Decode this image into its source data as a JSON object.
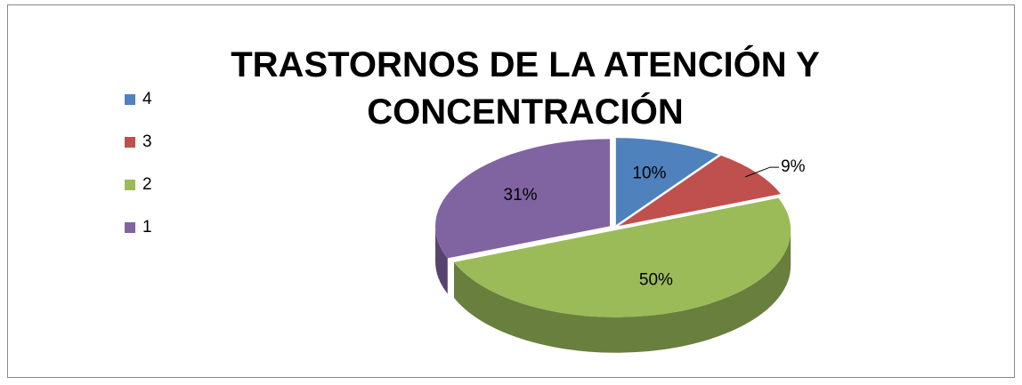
{
  "chart_data": {
    "type": "pie",
    "title": "TRASTORNOS DE LA ATENCIÓN Y CONCENTRACIÓN",
    "categories": [
      "4",
      "3",
      "2",
      "1"
    ],
    "values": [
      10,
      9,
      50,
      31
    ],
    "value_labels": [
      "10%",
      "9%",
      "50%",
      "31%"
    ],
    "colors": [
      "#4f81bd",
      "#c0504d",
      "#9bbb59",
      "#8064a2"
    ],
    "legend": "left"
  }
}
